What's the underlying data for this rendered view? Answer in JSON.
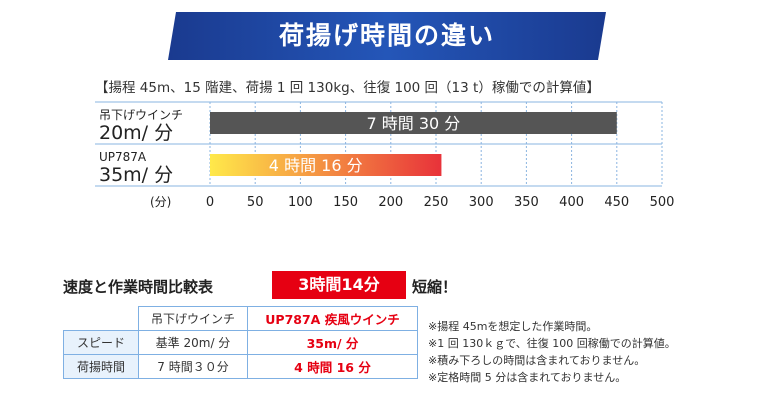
{
  "header": {
    "title": "荷揚げ時間の違い",
    "subtitle": "【揚程 45m、15 階建、荷揚 1 回 130kg、往復 100 回（13 t）稼働での計算値】"
  },
  "chart_data": {
    "type": "bar",
    "orientation": "horizontal",
    "xlim": [
      0,
      500
    ],
    "xticks": [
      0,
      50,
      100,
      150,
      200,
      250,
      300,
      350,
      400,
      450,
      500
    ],
    "xunit": "(分)",
    "grid": true,
    "categories": [
      {
        "name": "吊下げウインチ",
        "speed": "20m/ 分",
        "value": 450,
        "label": "7 時間 30 分",
        "color": "#555555"
      },
      {
        "name": "UP787A",
        "speed": "35m/ 分",
        "value": 256,
        "label": "4 時間 16 分",
        "color_start": "#ffe94a",
        "color_end": "#e8323a"
      }
    ]
  },
  "comparison": {
    "title": "速度と作業時間比較表",
    "badge": "3時間14分",
    "suffix": "短縮！",
    "table": {
      "header": [
        "",
        "吊下げウインチ",
        "UP787A 疾風ウインチ"
      ],
      "rows": [
        [
          "スピード",
          "基準 20m/ 分",
          "35m/ 分"
        ],
        [
          "荷揚時間",
          "7 時間３０分",
          "4 時間 16 分"
        ]
      ]
    }
  },
  "notes": [
    "※揚程 45mを想定した作業時間。",
    "※1 回 130ｋｇで、往復 100 回稼働での計算値。",
    "※積み下ろしの時間は含まれておりません。",
    "※定格時間 5 分は含まれておりません。"
  ],
  "colors": {
    "banner_start": "#1a3a8f",
    "banner_end": "#2a6fd6",
    "accent_red": "#e60012",
    "grid": "#8ab4e0"
  }
}
